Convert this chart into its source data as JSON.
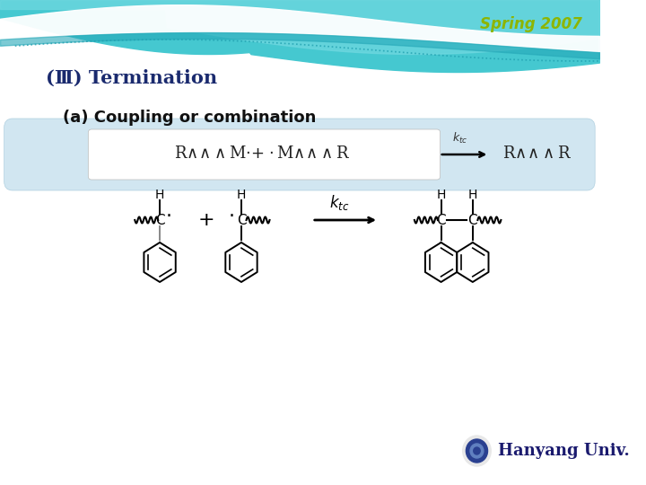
{
  "title_text": "Spring 2007",
  "title_color": "#8DB500",
  "heading_text": "(Ⅲ) Termination",
  "heading_color": "#1a2a6e",
  "subheading_text": "(a) Coupling or combination",
  "subheading_color": "#111111",
  "bg_color": "#ffffff",
  "box_bg_color": "#cce4f0",
  "footer_text": "Hanyang Univ.",
  "footer_color": "#1a1a6e",
  "wave_teal": "#3cc8d0",
  "wave_light": "#80dce0",
  "wave_pale": "#b8ecf0"
}
